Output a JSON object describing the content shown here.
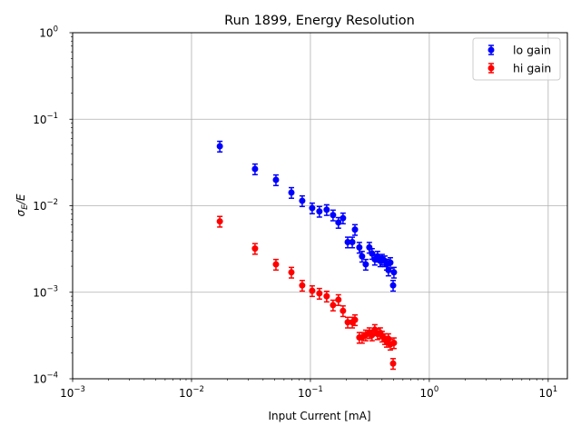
{
  "chart_data": {
    "type": "scatter",
    "title": "Run 1899, Energy Resolution",
    "xlabel": "Input Current [mA]",
    "ylabel": "σE/E",
    "xscale": "log",
    "yscale": "log",
    "xlim": [
      0.001,
      14.5
    ],
    "ylim": [
      0.0001,
      1
    ],
    "grid": true,
    "legend_position": "top-right",
    "x_ticks": [
      {
        "value": 0.001,
        "label": "10",
        "exp": "−3"
      },
      {
        "value": 0.01,
        "label": "10",
        "exp": "−2"
      },
      {
        "value": 0.1,
        "label": "10",
        "exp": "−1"
      },
      {
        "value": 1,
        "label": "10",
        "exp": "0"
      },
      {
        "value": 10,
        "label": "10",
        "exp": "1"
      }
    ],
    "y_ticks": [
      {
        "value": 0.0001,
        "label": "10",
        "exp": "−4"
      },
      {
        "value": 0.001,
        "label": "10",
        "exp": "−3"
      },
      {
        "value": 0.01,
        "label": "10",
        "exp": "−2"
      },
      {
        "value": 0.1,
        "label": "10",
        "exp": "−1"
      },
      {
        "value": 1,
        "label": "10",
        "exp": "0"
      }
    ],
    "x": [
      0.0173,
      0.0342,
      0.0513,
      0.0692,
      0.0853,
      0.1035,
      0.119,
      0.137,
      0.155,
      0.172,
      0.188,
      0.206,
      0.225,
      0.237,
      0.258,
      0.272,
      0.292,
      0.313,
      0.33,
      0.348,
      0.367,
      0.387,
      0.401,
      0.423,
      0.438,
      0.453,
      0.47,
      0.504,
      0.496
    ],
    "series": [
      {
        "name": "lo gain",
        "color": "#0000ff",
        "values": [
          0.0487,
          0.0266,
          0.0199,
          0.0142,
          0.0114,
          0.0094,
          0.0086,
          0.009,
          0.0078,
          0.0064,
          0.0072,
          0.0038,
          0.0038,
          0.0053,
          0.0033,
          0.0026,
          0.0021,
          0.0033,
          0.0028,
          0.0024,
          0.0026,
          0.0023,
          0.0024,
          0.0023,
          0.0021,
          0.0018,
          0.0022,
          0.0017,
          0.0012
        ],
        "rel_error": 0.14
      },
      {
        "name": "hi gain",
        "color": "#ff0000",
        "values": [
          0.0066,
          0.0032,
          0.0021,
          0.0017,
          0.0012,
          0.00104,
          0.00097,
          0.0009,
          0.00071,
          0.00082,
          0.00061,
          0.00045,
          0.00045,
          0.00048,
          0.0003,
          0.0003,
          0.00032,
          0.00034,
          0.00032,
          0.00037,
          0.00033,
          0.00034,
          0.00031,
          0.00029,
          0.00027,
          0.00029,
          0.00025,
          0.00026,
          0.00015
        ],
        "rel_error": 0.14
      }
    ]
  }
}
